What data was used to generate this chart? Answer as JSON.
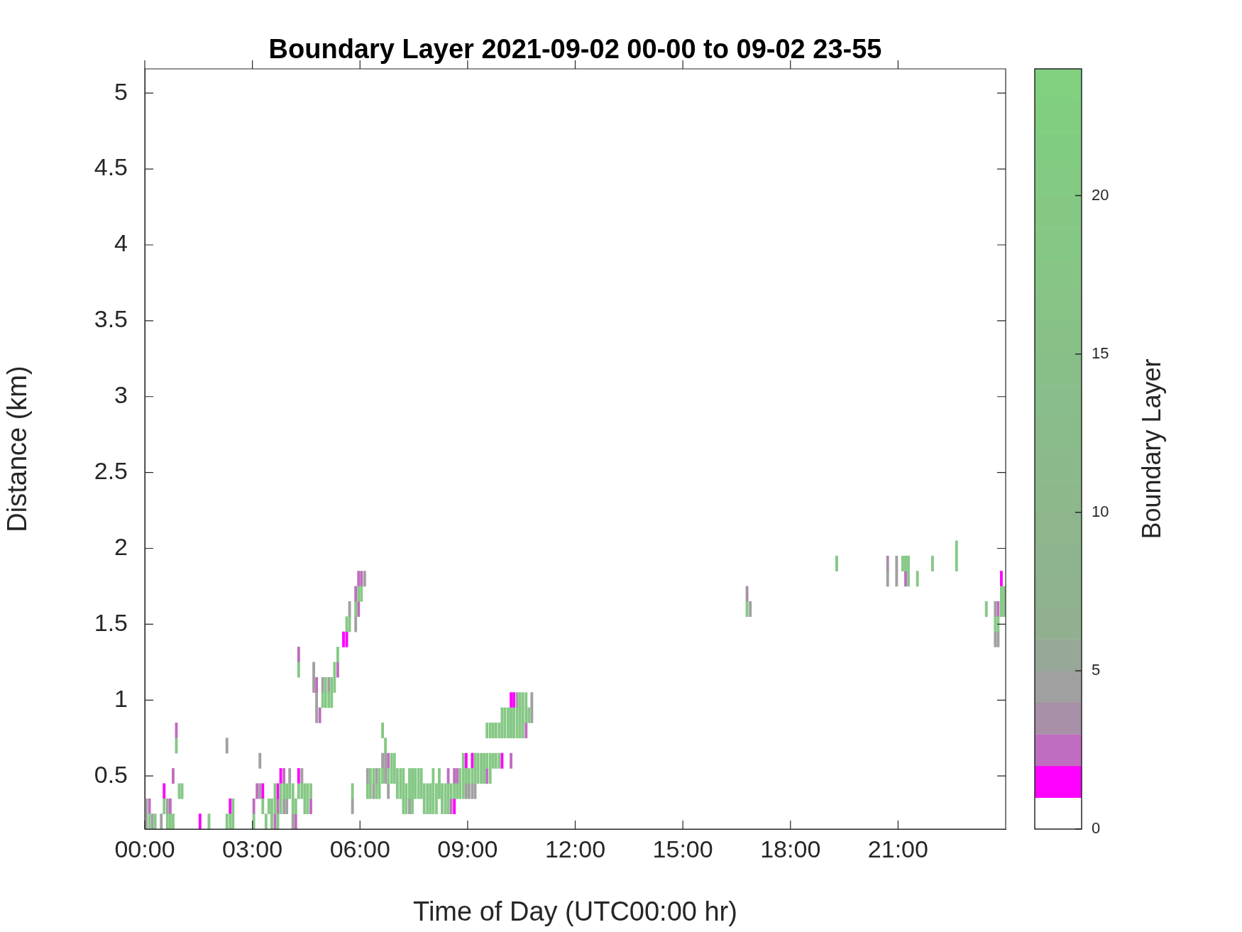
{
  "chart_data": {
    "type": "bar",
    "title": "Boundary Layer 2021-09-02 00-00 to 09-02 23-55",
    "xlabel": "Time of Day (UTC00:00 hr)",
    "ylabel": "Distance (km)",
    "clabel": "Boundary Layer",
    "xlim": [
      0,
      24
    ],
    "xticks": [
      {
        "value": 0,
        "label": "00:00"
      },
      {
        "value": 3,
        "label": "03:00"
      },
      {
        "value": 6,
        "label": "06:00"
      },
      {
        "value": 9,
        "label": "09:00"
      },
      {
        "value": 12,
        "label": "12:00"
      },
      {
        "value": 15,
        "label": "15:00"
      },
      {
        "value": 18,
        "label": "18:00"
      },
      {
        "value": 21,
        "label": "21:00"
      }
    ],
    "ylim": [
      0.15,
      5.16
    ],
    "yticks": [
      0.5,
      1,
      1.5,
      2,
      2.5,
      3,
      3.5,
      4,
      4.5,
      5
    ],
    "clim": [
      0,
      24
    ],
    "cticks": [
      0,
      5,
      10,
      15,
      20
    ],
    "series": [
      {
        "color": "#86c886",
        "x": [
          0.13,
          0.29,
          0.54,
          0.63,
          0.71,
          0.79,
          0.88,
          0.96,
          1.04,
          1.79,
          2.29,
          2.38,
          2.46,
          3.04,
          3.29,
          3.38,
          3.46,
          3.54,
          3.63,
          3.71,
          3.79,
          3.88,
          3.96,
          4.04,
          4.13,
          4.21,
          4.29,
          4.38,
          4.46,
          4.54,
          4.63,
          4.96,
          5.04,
          5.13,
          5.21,
          5.29,
          5.38,
          5.63,
          5.71,
          5.79,
          5.88,
          5.96,
          6.04,
          6.21,
          6.29,
          6.38,
          6.46,
          6.54,
          6.63,
          6.71,
          6.79,
          6.88,
          6.96,
          7.04,
          7.13,
          7.21,
          7.29,
          7.38,
          7.46,
          7.54,
          7.63,
          7.71,
          7.79,
          7.88,
          7.96,
          8.04,
          8.13,
          8.21,
          8.29,
          8.38,
          8.46,
          8.54,
          8.63,
          8.71,
          8.79,
          8.88,
          8.96,
          9.04,
          9.13,
          9.21,
          9.29,
          9.38,
          9.46,
          9.54,
          9.63,
          9.71,
          9.79,
          9.88,
          9.96,
          10.04,
          10.13,
          10.21,
          10.29,
          10.38,
          10.46,
          10.54,
          10.63,
          10.71,
          16.79,
          19.29,
          21.13,
          21.21,
          21.29,
          21.54,
          21.96,
          22.63,
          23.46,
          23.71,
          23.79,
          23.88,
          23.96
        ],
        "base": [
          0.15,
          0.15,
          0.25,
          0.15,
          0.15,
          0.15,
          0.65,
          0.35,
          0.35,
          0.15,
          0.15,
          0.15,
          0.15,
          0.15,
          0.25,
          0.15,
          0.25,
          0.15,
          0.25,
          0.15,
          0.25,
          0.35,
          0.35,
          0.35,
          0.25,
          0.25,
          0.35,
          0.35,
          0.25,
          0.25,
          0.35,
          0.95,
          0.95,
          0.95,
          0.95,
          1.05,
          1.25,
          1.45,
          1.45,
          0.35,
          1.55,
          1.65,
          1.65,
          0.35,
          0.35,
          0.45,
          0.35,
          0.35,
          0.45,
          0.65,
          0.45,
          0.45,
          0.45,
          0.35,
          0.35,
          0.25,
          0.25,
          0.35,
          0.25,
          0.35,
          0.35,
          0.35,
          0.25,
          0.25,
          0.25,
          0.25,
          0.25,
          0.35,
          0.25,
          0.25,
          0.25,
          0.35,
          0.35,
          0.35,
          0.35,
          0.35,
          0.45,
          0.45,
          0.45,
          0.45,
          0.45,
          0.45,
          0.45,
          0.55,
          0.45,
          0.55,
          0.55,
          0.55,
          0.75,
          0.75,
          0.75,
          0.75,
          0.75,
          0.75,
          0.75,
          0.75,
          0.85,
          0.85,
          1.55,
          1.85,
          1.85,
          1.85,
          1.75,
          1.75,
          1.85,
          1.85,
          1.55,
          1.45,
          1.45,
          1.55,
          1.55
        ],
        "values": [
          0.1,
          0.1,
          0.1,
          0.1,
          0.1,
          0.1,
          0.1,
          0.1,
          0.1,
          0.1,
          0.1,
          0.1,
          0.1,
          0.1,
          0.1,
          0.1,
          0.1,
          0.1,
          0.1,
          0.1,
          0.1,
          0.1,
          0.1,
          0.1,
          0.1,
          0.1,
          0.1,
          0.1,
          0.1,
          0.1,
          0.1,
          0.1,
          0.1,
          0.1,
          0.1,
          0.1,
          0.1,
          0.1,
          0.1,
          0.1,
          0.1,
          0.1,
          0.1,
          0.1,
          0.1,
          0.1,
          0.1,
          0.1,
          0.1,
          0.1,
          0.1,
          0.1,
          0.1,
          0.1,
          0.1,
          0.1,
          0.1,
          0.1,
          0.1,
          0.1,
          0.1,
          0.1,
          0.1,
          0.1,
          0.1,
          0.1,
          0.1,
          0.1,
          0.1,
          0.1,
          0.1,
          0.1,
          0.1,
          0.1,
          0.1,
          0.1,
          0.1,
          0.1,
          0.1,
          0.1,
          0.1,
          0.1,
          0.1,
          0.1,
          0.1,
          0.1,
          0.1,
          0.1,
          0.1,
          0.1,
          0.1,
          0.1,
          0.1,
          0.1,
          0.1,
          0.1,
          0.1,
          0.1,
          0.1,
          0.1,
          0.1,
          0.1,
          0.1,
          0.1,
          0.1,
          0.1,
          0.1,
          0.1,
          0.1,
          0.1,
          0.1
        ]
      },
      {
        "color": "#86c886",
        "x": [
          2.46,
          3.54,
          3.63,
          3.79,
          4.13,
          4.29,
          4.46,
          4.54,
          5.04,
          5.21,
          5.29,
          6.29,
          6.54,
          6.63,
          6.88,
          6.96,
          7.04,
          7.13,
          7.21,
          7.29,
          7.38,
          7.46,
          7.54,
          7.63,
          7.71,
          7.79,
          7.88,
          7.96,
          8.04,
          8.13,
          8.21,
          8.29,
          8.38,
          8.46,
          8.79,
          8.88,
          9.21,
          9.29,
          9.38,
          9.46,
          9.54,
          9.63,
          9.71,
          9.79,
          9.88,
          9.96,
          10.04,
          10.13,
          10.21,
          10.29,
          10.38,
          10.46,
          10.54,
          10.63,
          21.29,
          22.63,
          23.88,
          23.96
        ],
        "base": [
          0.25,
          0.25,
          0.35,
          0.35,
          0.35,
          1.15,
          0.35,
          0.35,
          1.05,
          1.05,
          1.15,
          0.45,
          0.45,
          0.75,
          0.55,
          0.55,
          0.45,
          0.45,
          0.35,
          0.35,
          0.45,
          0.35,
          0.45,
          0.45,
          0.45,
          0.35,
          0.35,
          0.35,
          0.35,
          0.35,
          0.45,
          0.35,
          0.35,
          0.35,
          0.45,
          0.45,
          0.55,
          0.55,
          0.55,
          0.55,
          0.75,
          0.55,
          0.75,
          0.75,
          0.75,
          0.85,
          0.85,
          0.85,
          0.85,
          0.85,
          0.85,
          0.85,
          0.85,
          0.95,
          1.85,
          1.95,
          1.65,
          1.65
        ],
        "values": [
          0.1,
          0.1,
          0.1,
          0.1,
          0.1,
          0.1,
          0.1,
          0.1,
          0.1,
          0.1,
          0.1,
          0.1,
          0.1,
          0.1,
          0.1,
          0.1,
          0.1,
          0.1,
          0.1,
          0.1,
          0.1,
          0.1,
          0.1,
          0.1,
          0.1,
          0.1,
          0.1,
          0.1,
          0.1,
          0.1,
          0.1,
          0.1,
          0.1,
          0.1,
          0.1,
          0.1,
          0.1,
          0.1,
          0.1,
          0.1,
          0.1,
          0.1,
          0.1,
          0.1,
          0.1,
          0.1,
          0.1,
          0.1,
          0.1,
          0.1,
          0.1,
          0.1,
          0.1,
          0.1,
          0.1,
          0.1,
          0.1,
          0.1
        ]
      },
      {
        "color": "#86c886",
        "x": [
          7.21,
          7.46,
          8.04,
          8.88,
          9.63,
          10.46,
          10.54
        ],
        "base": [
          0.45,
          0.45,
          0.45,
          0.55,
          0.75,
          0.95,
          0.95
        ],
        "values": [
          0.1,
          0.1,
          0.1,
          0.1,
          0.1,
          0.1,
          0.1
        ]
      },
      {
        "color": "#ff00ff",
        "x": [
          0.54,
          1.54,
          2.38,
          3.29,
          3.71,
          3.79,
          4.29,
          5.54,
          5.63,
          8.63,
          8.96,
          9.13,
          9.96,
          10.21,
          10.29,
          23.88
        ],
        "base": [
          0.35,
          0.15,
          0.25,
          0.35,
          0.35,
          0.45,
          0.45,
          1.35,
          1.35,
          0.25,
          0.55,
          0.55,
          0.55,
          0.95,
          0.95,
          1.75
        ],
        "values": [
          0.1,
          0.1,
          0.1,
          0.1,
          0.1,
          0.1,
          0.1,
          0.1,
          0.1,
          0.1,
          0.1,
          0.1,
          0.1,
          0.1,
          0.1,
          0.1
        ]
      },
      {
        "color": "#c06cc0",
        "x": [
          0.13,
          0.71,
          0.79,
          0.88,
          3.04,
          3.13,
          3.63,
          3.71,
          3.88,
          4.21,
          4.29,
          4.63,
          4.79,
          4.88,
          5.38,
          5.88,
          5.96,
          6.04,
          6.79,
          8.46,
          8.54,
          8.63,
          8.71,
          9.54,
          10.21,
          10.63,
          21.21,
          23.79
        ],
        "base": [
          0.25,
          0.25,
          0.45,
          0.75,
          0.25,
          0.35,
          0.15,
          0.25,
          0.45,
          0.15,
          1.25,
          0.25,
          1.05,
          0.85,
          1.15,
          1.65,
          1.55,
          1.75,
          0.55,
          0.45,
          0.25,
          0.45,
          0.45,
          0.45,
          0.55,
          0.75,
          1.75,
          1.55
        ],
        "values": [
          0.1,
          0.1,
          0.1,
          0.1,
          0.1,
          0.1,
          0.1,
          0.1,
          0.1,
          0.1,
          0.1,
          0.1,
          0.1,
          0.1,
          0.1,
          0.1,
          0.1,
          0.1,
          0.1,
          0.1,
          0.1,
          0.1,
          0.1,
          0.1,
          0.1,
          0.1,
          0.1,
          0.1
        ]
      },
      {
        "color": "#c06cc0",
        "x": [
          5.96
        ],
        "base": [
          1.75
        ],
        "values": [
          0.1
        ]
      },
      {
        "colors": [
          "#a0a0a0",
          "#a0a0a0",
          "#a0a0a0",
          "#a0a0a0",
          "#a0a0a0",
          "#a0a0a0",
          "#a0a0a0",
          "#a0a0a0",
          "#a0a0a0",
          "#a0a0a0",
          "#a0a0a0",
          "#a0a0a0",
          "#a0a0a0",
          "#a0a0a0",
          "#a0a0a0",
          "#a0a0a0",
          "#a0a0a0",
          "#a0a0a0",
          "#a0a0a0",
          "#a0a0a0",
          "#a0a0a0",
          "#a0a0a0",
          "#a0a0a0",
          "#a0a0a0",
          "#a0a0a0",
          "#a0a0a0",
          "#a0a0a0",
          "#a0a0a0",
          "#a0a0a0",
          "#a0a0a0",
          "#a0a0a0",
          "#a0a0a0",
          "#a890a8",
          "#a0a0a0",
          "#a0a0a0",
          "#a0a0a0",
          "#a0a0a0",
          "#a0a0a0"
        ],
        "x": [
          0.04,
          0.21,
          0.46,
          0.63,
          2.29,
          3.21,
          3.88,
          3.96,
          4.04,
          4.13,
          4.38,
          4.71,
          4.79,
          4.96,
          5.13,
          5.71,
          5.79,
          5.88,
          6.13,
          6.21,
          6.38,
          6.46,
          6.63,
          6.71,
          6.79,
          7.38,
          8.96,
          9.04,
          9.13,
          9.21,
          10.38,
          10.79,
          16.79,
          16.88,
          20.71,
          20.96,
          23.71,
          23.79
        ],
        "base": [
          0.15,
          0.15,
          0.15,
          0.25,
          0.65,
          0.35,
          0.25,
          0.25,
          0.45,
          0.15,
          0.45,
          1.05,
          0.85,
          1.05,
          1.05,
          1.55,
          0.25,
          1.45,
          1.75,
          0.45,
          0.35,
          0.45,
          0.55,
          0.45,
          0.35,
          0.25,
          0.35,
          0.35,
          0.35,
          0.35,
          0.95,
          0.85,
          1.65,
          1.55,
          1.75,
          1.75,
          1.35,
          1.35
        ],
        "values": [
          0.1,
          0.1,
          0.1,
          0.1,
          0.1,
          0.1,
          0.1,
          0.1,
          0.1,
          0.1,
          0.1,
          0.1,
          0.1,
          0.1,
          0.1,
          0.1,
          0.1,
          0.1,
          0.1,
          0.1,
          0.1,
          0.1,
          0.1,
          0.1,
          0.1,
          0.1,
          0.1,
          0.1,
          0.1,
          0.1,
          0.1,
          0.1,
          0.1,
          0.1,
          0.1,
          0.1,
          0.1,
          0.1
        ]
      },
      {
        "colors": [
          "#a0a0a0",
          "#a0a0a0",
          "#a0a0a0",
          "#a0a0a0",
          "#a0a0a0",
          "#a0a0a0",
          "#a890a8",
          "#a0a0a0",
          "#a0a0a0"
        ],
        "x": [
          0.04,
          3.21,
          4.71,
          4.79,
          6.71,
          10.79,
          20.71,
          20.96,
          23.71
        ],
        "base": [
          0.25,
          0.55,
          1.15,
          0.95,
          0.55,
          0.95,
          1.85,
          1.85,
          1.55
        ],
        "values": [
          0.1,
          0.1,
          0.1,
          0.1,
          0.1,
          0.1,
          0.1,
          0.1,
          0.1
        ]
      }
    ]
  }
}
